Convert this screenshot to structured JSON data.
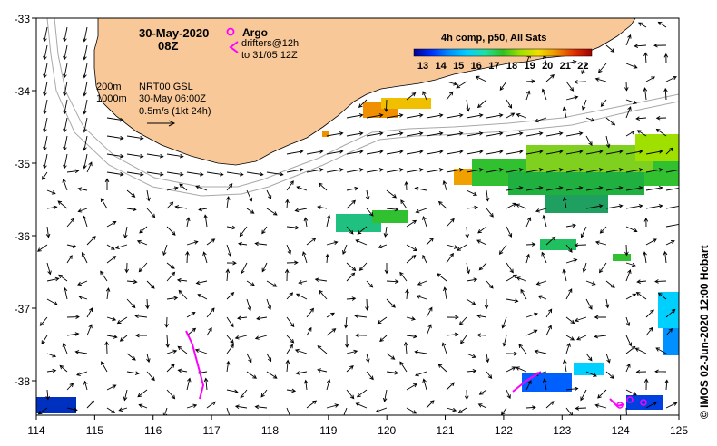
{
  "map": {
    "date": "30-May-2020",
    "time": "08Z",
    "legend_argo": "Argo",
    "legend_drifters_line1": "drifters@12h",
    "legend_drifters_line2": "to 31/05 12Z",
    "contour_200": "200m",
    "contour_1000": "1000m",
    "product": "NRT00 GSL",
    "product_time": "30-May 06:00Z",
    "scale_label": "0.5m/s (1kt 24h)",
    "colorbar_title": "4h comp, p50, All Sats",
    "colorbar_ticks": [
      "13",
      "14",
      "15",
      "16",
      "17",
      "18",
      "19",
      "20",
      "21",
      "22"
    ],
    "colorbar_colors": [
      "#00008f",
      "#0030ff",
      "#0090ff",
      "#00d0ff",
      "#20e0a0",
      "#30c020",
      "#a0e000",
      "#f0e000",
      "#f09000",
      "#e03000",
      "#a00000"
    ],
    "credit": "© IMOS 02-Jun-2020 12:00 Hobart",
    "x_ticks": [
      "114",
      "115",
      "116",
      "117",
      "118",
      "119",
      "120",
      "121",
      "122",
      "123",
      "124",
      "125"
    ],
    "y_ticks": [
      "-33",
      "-34",
      "-35",
      "-36",
      "-37",
      "-38"
    ],
    "land_color": "#f8c898",
    "argo_color": "#ff00ff",
    "drifter_color": "#ff00ff"
  }
}
